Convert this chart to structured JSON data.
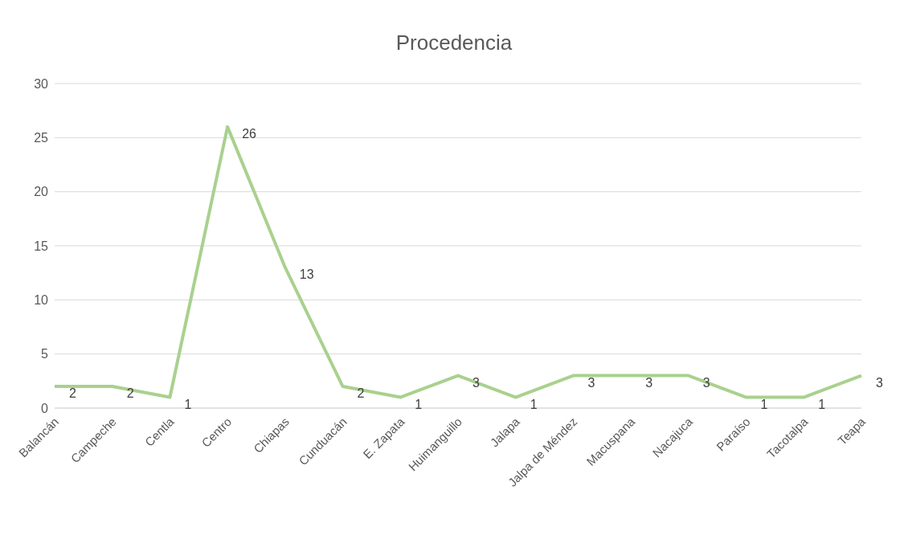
{
  "chart_data": {
    "type": "line",
    "title": "Procedencia",
    "categories": [
      "Balancán",
      "Campeche",
      "Centla",
      "Centro",
      "Chiapas",
      "Cunduacán",
      "E. Zapata",
      "Huimanguillo",
      "Jalapa",
      "Jalpa de Méndez",
      "Macuspana",
      "Nacajuca",
      "Paraíso",
      "Tacotalpa",
      "Teapa"
    ],
    "series": [
      {
        "color": "#a9d18e",
        "values": [
          2,
          2,
          1,
          26,
          13,
          2,
          1,
          3,
          1,
          3,
          3,
          3,
          1,
          1,
          3
        ]
      }
    ],
    "ylim": [
      0,
      30
    ],
    "yticks": [
      0,
      5,
      10,
      15,
      20,
      25,
      30
    ],
    "grid": "y",
    "legend": false,
    "marker": "none",
    "line_style": "solid",
    "data_labels": true
  }
}
